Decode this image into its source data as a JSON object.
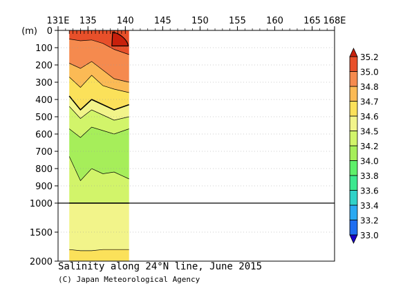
{
  "chart_data": {
    "type": "heatmap",
    "title": "Salinity along 24°N line, June 2015",
    "credit": "(C) Japan Meteorological Agency",
    "x_unit_label": "",
    "y_unit_label": "(m)",
    "xlim": [
      131,
      168
    ],
    "x_ticks": [
      {
        "value": 131,
        "label": "131E"
      },
      {
        "value": 135,
        "label": "135"
      },
      {
        "value": 140,
        "label": "140"
      },
      {
        "value": 145,
        "label": "145"
      },
      {
        "value": 150,
        "label": "150"
      },
      {
        "value": 155,
        "label": "155"
      },
      {
        "value": 160,
        "label": "160"
      },
      {
        "value": 165,
        "label": "165"
      },
      {
        "value": 168,
        "label": "168E"
      }
    ],
    "y_upper_ticks": [
      0,
      100,
      200,
      300,
      400,
      500,
      600,
      700,
      800,
      900,
      1000
    ],
    "y_lower_ticks": [
      1500,
      2000
    ],
    "y_break_depth": 1000,
    "y_max": 2000,
    "data_x_range": [
      132.5,
      140.5
    ],
    "station_longitudes": [
      132.5,
      133.0,
      133.5,
      134.0,
      134.5,
      135.0,
      135.5,
      136.0,
      136.5,
      137.0,
      137.5,
      138.0,
      138.5,
      139.0,
      139.5,
      140.0
    ],
    "colorbar": {
      "levels": [
        33.0,
        33.2,
        33.4,
        33.6,
        33.8,
        34.0,
        34.2,
        34.5,
        34.6,
        34.7,
        34.8,
        35.0,
        35.2
      ],
      "colors": [
        "#1a00c8",
        "#1f6ef0",
        "#2aa9f2",
        "#2fd2c8",
        "#3ce88f",
        "#5ef06a",
        "#a6ee5a",
        "#d2f46a",
        "#f2f48a",
        "#fbe15a",
        "#fbba55",
        "#f58a4e",
        "#e8502a",
        "#c8200c"
      ],
      "labels": [
        "33.0",
        "33.2",
        "33.4",
        "33.6",
        "33.8",
        "34.0",
        "34.2",
        "34.5",
        "34.6",
        "34.7",
        "34.8",
        "35.0",
        "35.2"
      ]
    },
    "contour_profiles": {
      "x": [
        132.5,
        134.0,
        135.5,
        137.0,
        138.5,
        140.5
      ],
      "boundaries": [
        {
          "level": 35.0,
          "depths": [
            50,
            60,
            55,
            75,
            110,
            140
          ]
        },
        {
          "level": 34.8,
          "depths": [
            190,
            220,
            180,
            230,
            280,
            300
          ]
        },
        {
          "level": 34.7,
          "depths": [
            270,
            330,
            260,
            320,
            340,
            360
          ]
        },
        {
          "level": 34.6,
          "depths": [
            380,
            460,
            400,
            430,
            460,
            430
          ]
        },
        {
          "level": 34.5,
          "depths": [
            440,
            510,
            460,
            490,
            520,
            500
          ]
        },
        {
          "level": 34.2,
          "depths": [
            570,
            620,
            560,
            580,
            600,
            570
          ]
        },
        {
          "level": 34.0,
          "depths": [
            730,
            870,
            800,
            830,
            820,
            860
          ]
        },
        {
          "level": 34.2,
          "depths": [
            1000,
            1000,
            1000,
            1000,
            1000,
            1000
          ]
        },
        {
          "level": 34.5,
          "depths": [
            1800,
            1820,
            1820,
            1800,
            1800,
            1800
          ]
        }
      ],
      "bands": [
        {
          "color_level": 35.0,
          "top": "surface"
        },
        {
          "color_level": 34.8
        },
        {
          "color_level": 34.7
        },
        {
          "color_level": 34.6
        },
        {
          "color_level": 34.5
        },
        {
          "color_level": 34.2
        },
        {
          "color_level": 34.0
        },
        {
          "color_level": 34.2
        },
        {
          "color_level": 34.5
        },
        {
          "color_level": 34.6
        }
      ]
    }
  }
}
